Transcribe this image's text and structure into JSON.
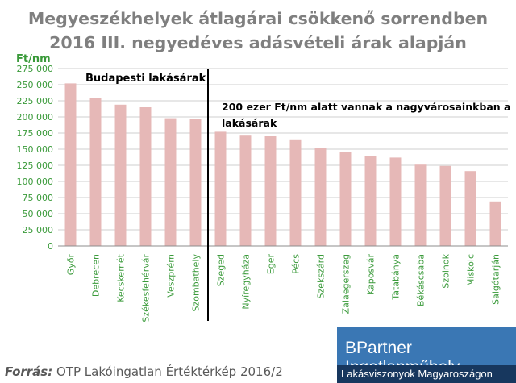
{
  "title_line1": "Megyeszékhelyek átlagárai csökkenő sorrendben",
  "title_line2": "2016 III. negyedéves adásvételi árak alapján",
  "source_label": "Forrás:",
  "source_text": "OTP Lakóingatlan Értéktérkép 2016/2",
  "brand": {
    "name": "BPartner Ingatlanműhely",
    "tagline": "Lakásviszonyok Magyaroszágon",
    "bg_color": "#3a77b4",
    "band_color": "#17375e"
  },
  "colors": {
    "bar": "#e6b8b7",
    "grid": "#bfbfbf",
    "tick_text": "#3a9a3a",
    "unit_text": "#3a9a3a"
  },
  "chart_data": {
    "type": "bar",
    "title": "Megyeszékhelyek átlagárai csökkenő sorrendben 2016 III. negyedéves adásvételi árak alapján",
    "ylabel": "Ft/nm",
    "ylim": [
      0,
      275000
    ],
    "yticks": [
      0,
      25000,
      50000,
      75000,
      100000,
      125000,
      150000,
      175000,
      200000,
      225000,
      250000,
      275000
    ],
    "ytick_labels": [
      "0",
      "25 000",
      "50 000",
      "75 000",
      "100 000",
      "125 000",
      "150 000",
      "175 000",
      "200 000",
      "225 000",
      "250 000",
      "275 000"
    ],
    "grid": true,
    "categories": [
      "Győr",
      "Debrecen",
      "Kecskemét",
      "Székesfehérvár",
      "Veszprém",
      "Szombathely",
      "Szeged",
      "Nyíregyháza",
      "Eger",
      "Pécs",
      "Szekszárd",
      "Zalaegerszeg",
      "Kaposvár",
      "Tatabánya",
      "Békéscsaba",
      "Szolnok",
      "Miskolc",
      "Salgótarján"
    ],
    "values": [
      252000,
      230000,
      219000,
      215000,
      198000,
      197000,
      177000,
      171000,
      170000,
      164000,
      152000,
      146000,
      139000,
      137000,
      126000,
      124000,
      116000,
      69000
    ],
    "annotations": [
      {
        "text": "Budapesti lakásárak"
      },
      {
        "text": "200 ezer Ft/nm alatt vannak a nagyvárosainkban a lakásárak"
      }
    ]
  }
}
